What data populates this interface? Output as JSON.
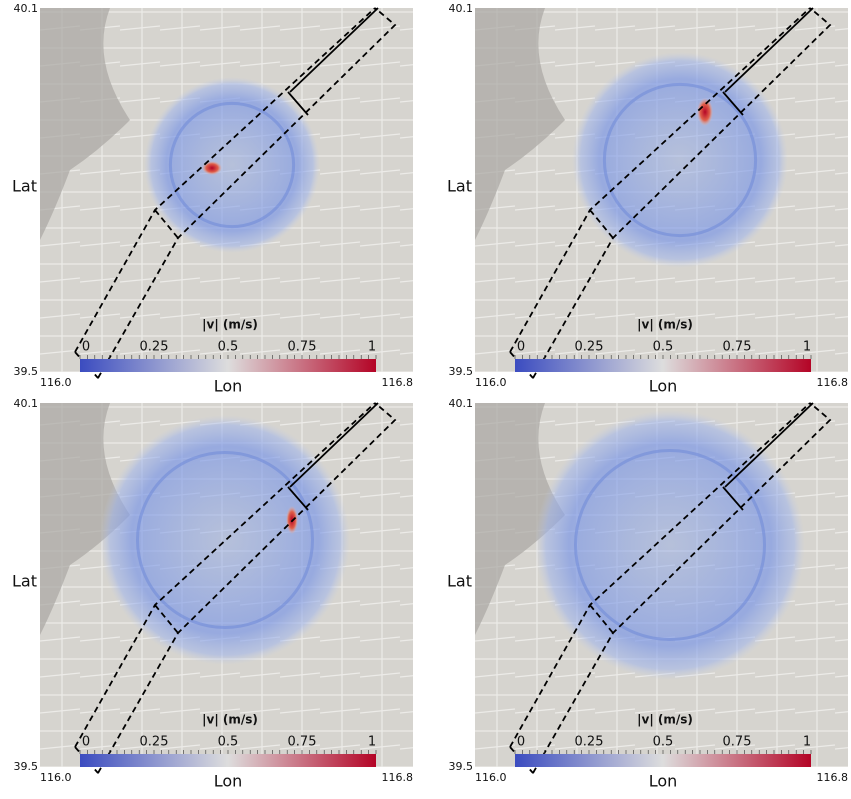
{
  "panels": [
    {
      "y_label": "Lat",
      "x_label": "Lon",
      "lat_ticks": [
        40.1,
        39.5
      ],
      "lon_ticks": [
        "116.0",
        116.8
      ],
      "colorbar": {
        "label": "|v| (m/s)",
        "ticks": [
          0,
          0.25,
          0.5,
          0.75,
          1
        ]
      }
    },
    {
      "y_label": "Lat",
      "x_label": "Lon",
      "lat_ticks": [
        40.1,
        39.5
      ],
      "lon_ticks": [
        "116.0",
        116.8
      ],
      "colorbar": {
        "label": "|v| (m/s)",
        "ticks": [
          0,
          0.25,
          0.5,
          0.75,
          1
        ]
      }
    },
    {
      "y_label": "Lat",
      "x_label": "Lon",
      "lat_ticks": [
        40.1,
        39.5
      ],
      "lon_ticks": [
        "116.0",
        116.8
      ],
      "colorbar": {
        "label": "|v| (m/s)",
        "ticks": [
          0,
          0.25,
          0.5,
          0.75,
          1
        ]
      }
    },
    {
      "y_label": "Lat",
      "x_label": "Lon",
      "lat_ticks": [
        40.1,
        39.5
      ],
      "lon_ticks": [
        "116.0",
        116.8
      ],
      "colorbar": {
        "label": "|v| (m/s)",
        "ticks": [
          0,
          0.25,
          0.5,
          0.75,
          1
        ]
      }
    }
  ]
}
